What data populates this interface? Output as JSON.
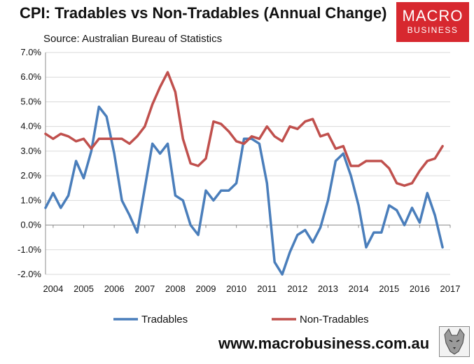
{
  "header": {
    "title": "CPI: Tradables vs Non-Tradables (Annual Change)",
    "source": "Source: Australian Bureau of Statistics"
  },
  "brand": {
    "logo_line1": "MACRO",
    "logo_line2": "BUSINESS",
    "website": "www.macrobusiness.com.au",
    "logo_color": "#d7282f"
  },
  "chart_data": {
    "type": "line",
    "title": "CPI: Tradables vs Non-Tradables (Annual Change)",
    "xlabel": "",
    "ylabel": "",
    "ylim": [
      -2.0,
      7.0
    ],
    "y_ticks": [
      "7.0%",
      "6.0%",
      "5.0%",
      "4.0%",
      "3.0%",
      "2.0%",
      "1.0%",
      "0.0%",
      "-1.0%",
      "-2.0%"
    ],
    "y_tick_values": [
      7,
      6,
      5,
      4,
      3,
      2,
      1,
      0,
      -1,
      -2
    ],
    "x_ticks": [
      "2004",
      "2005",
      "2006",
      "2007",
      "2008",
      "2009",
      "2010",
      "2011",
      "2012",
      "2013",
      "2014",
      "2015",
      "2016",
      "2017"
    ],
    "grid": true,
    "legend_position": "bottom",
    "x": [
      2003.75,
      2004,
      2004.25,
      2004.5,
      2004.75,
      2005,
      2005.25,
      2005.5,
      2005.75,
      2006,
      2006.25,
      2006.5,
      2006.75,
      2007,
      2007.25,
      2007.5,
      2007.75,
      2008,
      2008.25,
      2008.5,
      2008.75,
      2009,
      2009.25,
      2009.5,
      2009.75,
      2010,
      2010.25,
      2010.5,
      2010.75,
      2011,
      2011.25,
      2011.5,
      2011.75,
      2012,
      2012.25,
      2012.5,
      2012.75,
      2013,
      2013.25,
      2013.5,
      2013.75,
      2014,
      2014.25,
      2014.5,
      2014.75,
      2015,
      2015.25,
      2015.5,
      2015.75,
      2016,
      2016.25,
      2016.5,
      2016.75,
      2017
    ],
    "series": [
      {
        "name": "Tradables",
        "color": "#4a7ebb",
        "values": [
          0.7,
          1.3,
          0.7,
          1.2,
          2.6,
          1.9,
          3.0,
          4.8,
          4.4,
          2.9,
          1.0,
          0.4,
          -0.3,
          1.5,
          3.3,
          2.9,
          3.3,
          1.2,
          1.0,
          0.0,
          -0.4,
          1.4,
          1.0,
          1.4,
          1.4,
          1.7,
          3.5,
          3.5,
          3.3,
          1.7,
          -1.5,
          -2.0,
          -1.1,
          -0.4,
          -0.2,
          -0.7,
          -0.1,
          1.0,
          2.6,
          2.9,
          2.0,
          0.8,
          -0.9,
          -0.3,
          -0.3,
          0.8,
          0.6,
          0.0,
          0.7,
          0.1,
          1.3,
          0.4,
          -0.9,
          null
        ]
      },
      {
        "name": "Non-Tradables",
        "color": "#c0504d",
        "values": [
          3.7,
          3.5,
          3.7,
          3.6,
          3.4,
          3.5,
          3.1,
          3.5,
          3.5,
          3.5,
          3.5,
          3.3,
          3.6,
          4.0,
          4.9,
          5.6,
          6.2,
          5.4,
          3.5,
          2.5,
          2.4,
          2.7,
          4.2,
          4.1,
          3.8,
          3.4,
          3.3,
          3.6,
          3.5,
          4.0,
          3.6,
          3.4,
          4.0,
          3.9,
          4.2,
          4.3,
          3.6,
          3.7,
          3.1,
          3.2,
          2.4,
          2.4,
          2.6,
          2.6,
          2.6,
          2.3,
          1.7,
          1.6,
          1.7,
          2.2,
          2.6,
          2.7,
          3.2,
          null
        ]
      }
    ]
  }
}
